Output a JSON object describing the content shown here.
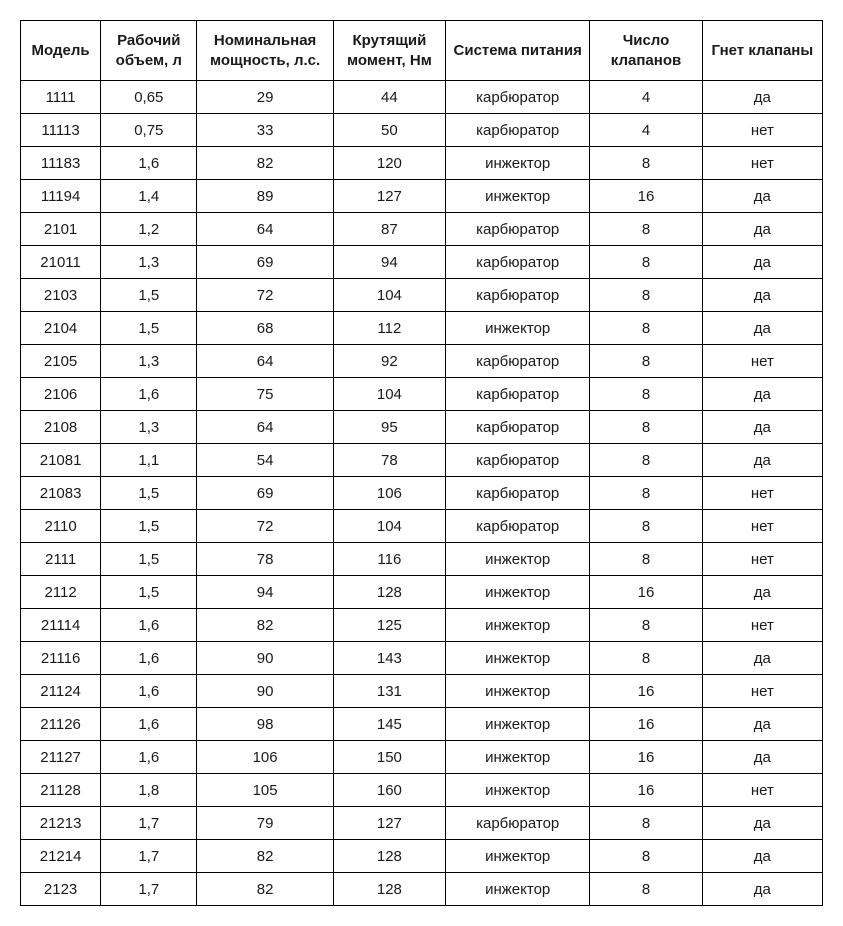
{
  "spec_table": {
    "type": "table",
    "background_color": "#ffffff",
    "border_color": "#000000",
    "text_color": "#1a1a1a",
    "header_fontsize": 15,
    "cell_fontsize": 15,
    "header_fontweight": "bold",
    "columns": [
      {
        "key": "model",
        "label": "Модель",
        "width": "10%"
      },
      {
        "key": "volume",
        "label": "Рабочий объем, л",
        "width": "12%"
      },
      {
        "key": "power",
        "label": "Номинальная мощность, л.с.",
        "width": "17%"
      },
      {
        "key": "torque",
        "label": "Крутящий момент, Нм",
        "width": "14%"
      },
      {
        "key": "fuel",
        "label": "Система питания",
        "width": "18%"
      },
      {
        "key": "valves",
        "label": "Число клапанов",
        "width": "14%"
      },
      {
        "key": "bend",
        "label": "Гнет клапаны",
        "width": "15%"
      }
    ],
    "rows": [
      [
        "1111",
        "0,65",
        "29",
        "44",
        "карбюратор",
        "4",
        "да"
      ],
      [
        "11113",
        "0,75",
        "33",
        "50",
        "карбюратор",
        "4",
        "нет"
      ],
      [
        "11183",
        "1,6",
        "82",
        "120",
        "инжектор",
        "8",
        "нет"
      ],
      [
        "11194",
        "1,4",
        "89",
        "127",
        "инжектор",
        "16",
        "да"
      ],
      [
        "2101",
        "1,2",
        "64",
        "87",
        "карбюратор",
        "8",
        "да"
      ],
      [
        "21011",
        "1,3",
        "69",
        "94",
        "карбюратор",
        "8",
        "да"
      ],
      [
        "2103",
        "1,5",
        "72",
        "104",
        "карбюратор",
        "8",
        "да"
      ],
      [
        "2104",
        "1,5",
        "68",
        "112",
        "инжектор",
        "8",
        "да"
      ],
      [
        "2105",
        "1,3",
        "64",
        "92",
        "карбюратор",
        "8",
        "нет"
      ],
      [
        "2106",
        "1,6",
        "75",
        "104",
        "карбюратор",
        "8",
        "да"
      ],
      [
        "2108",
        "1,3",
        "64",
        "95",
        "карбюратор",
        "8",
        "да"
      ],
      [
        "21081",
        "1,1",
        "54",
        "78",
        "карбюратор",
        "8",
        "да"
      ],
      [
        "21083",
        "1,5",
        "69",
        "106",
        "карбюратор",
        "8",
        "нет"
      ],
      [
        "2110",
        "1,5",
        "72",
        "104",
        "карбюратор",
        "8",
        "нет"
      ],
      [
        "2111",
        "1,5",
        "78",
        "116",
        "инжектор",
        "8",
        "нет"
      ],
      [
        "2112",
        "1,5",
        "94",
        "128",
        "инжектор",
        "16",
        "да"
      ],
      [
        "21114",
        "1,6",
        "82",
        "125",
        "инжектор",
        "8",
        "нет"
      ],
      [
        "21116",
        "1,6",
        "90",
        "143",
        "инжектор",
        "8",
        "да"
      ],
      [
        "21124",
        "1,6",
        "90",
        "131",
        "инжектор",
        "16",
        "нет"
      ],
      [
        "21126",
        "1,6",
        "98",
        "145",
        "инжектор",
        "16",
        "да"
      ],
      [
        "21127",
        "1,6",
        "106",
        "150",
        "инжектор",
        "16",
        "да"
      ],
      [
        "21128",
        "1,8",
        "105",
        "160",
        "инжектор",
        "16",
        "нет"
      ],
      [
        "21213",
        "1,7",
        "79",
        "127",
        "карбюратор",
        "8",
        "да"
      ],
      [
        "21214",
        "1,7",
        "82",
        "128",
        "инжектор",
        "8",
        "да"
      ],
      [
        "2123",
        "1,7",
        "82",
        "128",
        "инжектор",
        "8",
        "да"
      ]
    ]
  }
}
